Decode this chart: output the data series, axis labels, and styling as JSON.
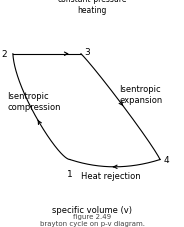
{
  "title": "constant-pressure\nheating",
  "xlabel": "specific volume (v)",
  "fig_label": "figure 2.49\nbrayton cycle on p-v diagram.",
  "background_color": "#ffffff",
  "outer_color": "#000000",
  "line_color": "#000000",
  "text_color": "#000000",
  "points": {
    "1": [
      0.38,
      0.22
    ],
    "2": [
      0.07,
      0.8
    ],
    "3": [
      0.44,
      0.8
    ],
    "4": [
      0.87,
      0.22
    ]
  },
  "annotations": {
    "Isentropic\ncompression": [
      0.04,
      0.54
    ],
    "Isentropic\nexpansion": [
      0.65,
      0.58
    ],
    "Heat rejection": [
      0.6,
      0.13
    ]
  },
  "fontsize_label": 6.5,
  "fontsize_annot": 6.0,
  "fontsize_title": 5.5,
  "fontsize_xlabel": 6.0,
  "fontsize_figlabel": 5.0
}
